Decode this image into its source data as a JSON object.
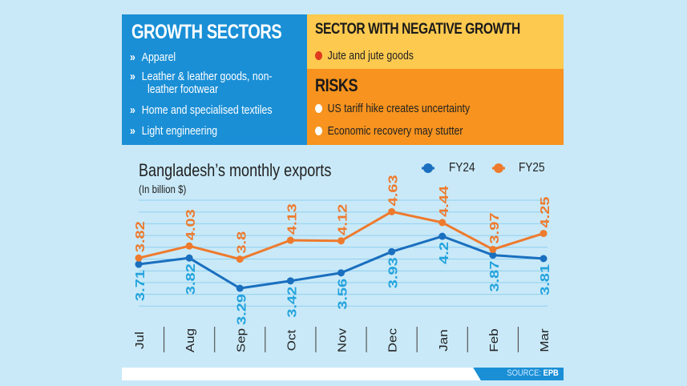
{
  "growth": {
    "title": "GROWTH SECTORS",
    "items": [
      "Apparel",
      "Leather & leather goods, non-",
      "leather footwear",
      "Home and specialised textiles",
      "Light engineering"
    ],
    "bullet": "»"
  },
  "negative": {
    "title": "SECTOR WITH NEGATIVE GROWTH",
    "items": [
      "Jute and jute goods"
    ]
  },
  "risks": {
    "title": "RISKS",
    "items": [
      "US tariff hike creates uncertainty",
      "Economic recovery may stutter"
    ]
  },
  "source": {
    "label": "SOURCE:",
    "value": "EPB"
  },
  "colors": {
    "fy24": "#1a6fbf",
    "fy25": "#ee7a2d",
    "fy24_label": "#23a3dd",
    "fy25_label": "#ee7a2d",
    "blue_panel": "#1a8fd6",
    "yellow_panel": "#fdc94f",
    "orange_panel": "#f7931e",
    "background": "#c9e9f8"
  },
  "chart_data": {
    "type": "line",
    "title": "Bangladesh’s monthly exports",
    "subtitle": "(In billion $)",
    "categories": [
      "Jul",
      "Aug",
      "Sep",
      "Oct",
      "Nov",
      "Dec",
      "Jan",
      "Feb",
      "Mar"
    ],
    "series": [
      {
        "name": "FY24",
        "values": [
          3.71,
          3.82,
          3.29,
          3.42,
          3.56,
          3.93,
          4.2,
          3.87,
          3.81
        ],
        "labels": [
          "3.71",
          "3.82",
          "3.29",
          "3.42",
          "3.56",
          "3.93",
          "4.2",
          "3.87",
          "3.81"
        ]
      },
      {
        "name": "FY25",
        "values": [
          3.82,
          4.03,
          3.8,
          4.13,
          4.12,
          4.63,
          4.44,
          3.97,
          4.25
        ],
        "labels": [
          "3.82",
          "4.03",
          "3.8",
          "4.13",
          "4.12",
          "4.63",
          "4.44",
          "3.97",
          "4.25"
        ]
      }
    ],
    "grid": true,
    "legend": "top-right"
  }
}
